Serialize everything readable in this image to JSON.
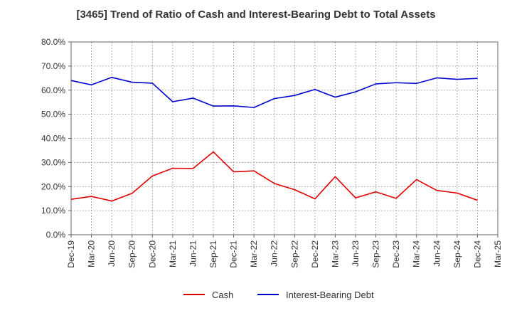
{
  "chart_data": {
    "type": "line",
    "title": "[3465]  Trend of Ratio of Cash and Interest-Bearing Debt to Total Assets",
    "xlabel": "",
    "ylabel": "",
    "ylim": [
      0,
      80
    ],
    "y_ticks": [
      "0.0%",
      "10.0%",
      "20.0%",
      "30.0%",
      "40.0%",
      "50.0%",
      "60.0%",
      "70.0%",
      "80.0%"
    ],
    "categories": [
      "Dec-19",
      "Mar-20",
      "Jun-20",
      "Sep-20",
      "Dec-20",
      "Mar-21",
      "Jun-21",
      "Sep-21",
      "Dec-21",
      "Mar-22",
      "Jun-22",
      "Sep-22",
      "Dec-22",
      "Mar-23",
      "Jun-23",
      "Sep-23",
      "Dec-23",
      "Mar-24",
      "Jun-24",
      "Sep-24",
      "Dec-24",
      "Mar-25"
    ],
    "grid": true,
    "legend_position": "bottom",
    "series": [
      {
        "name": "Cash",
        "color": "#e00000",
        "values": [
          14.7,
          15.9,
          14.0,
          17.2,
          24.4,
          27.6,
          27.5,
          34.4,
          26.1,
          26.5,
          21.3,
          18.7,
          14.9,
          24.1,
          15.3,
          17.8,
          15.1,
          22.9,
          18.4,
          17.3,
          14.3,
          null
        ]
      },
      {
        "name": "Interest-Bearing Debt",
        "color": "#0000cc",
        "values": [
          64.0,
          62.2,
          65.3,
          63.3,
          62.9,
          55.2,
          56.7,
          53.4,
          53.5,
          52.8,
          56.5,
          57.8,
          60.3,
          57.1,
          59.3,
          62.6,
          63.1,
          62.8,
          65.1,
          64.5,
          64.9,
          null
        ]
      }
    ]
  }
}
